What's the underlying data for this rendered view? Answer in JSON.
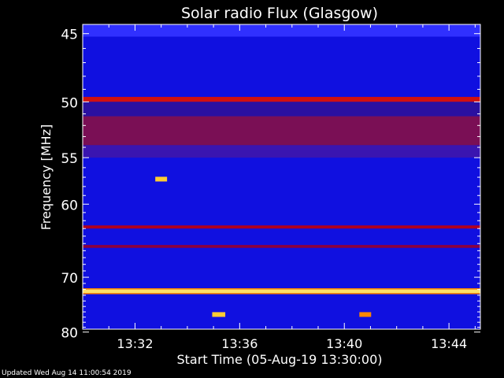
{
  "chart_data": {
    "type": "heatmap",
    "title": "Solar radio Flux (Glasgow)",
    "xlabel": "Start Time (05-Aug-19 13:30:00)",
    "ylabel": "Frequency [MHz]",
    "x_tick_labels": [
      "13:32",
      "13:36",
      "13:40",
      "13:44"
    ],
    "x_ticks_minutes": [
      2,
      6,
      10,
      14
    ],
    "xlim_minutes": [
      0,
      15.2
    ],
    "y_tick_labels": [
      "45",
      "50",
      "55",
      "60",
      "70",
      "80"
    ],
    "y_ticks_mhz": [
      45,
      50,
      55,
      60,
      70,
      80
    ],
    "ylim_mhz": [
      44.4,
      79.4
    ],
    "y_scale": "reciprocal (frequency increases downward, non-linear)",
    "colormap": [
      "#00008b",
      "#1a1aff",
      "#8b0040",
      "#cc0000",
      "#ff6600",
      "#ffff66",
      "#ffffff"
    ],
    "background_color": "#1010e0",
    "bands": [
      {
        "f_from": 44.4,
        "f_to": 45.2,
        "color": "#3030ff"
      },
      {
        "f_from": 49.6,
        "f_to": 50.0,
        "color": "#d01010"
      },
      {
        "f_from": 50.0,
        "f_to": 51.2,
        "color": "#2a10a0"
      },
      {
        "f_from": 51.2,
        "f_to": 53.8,
        "color": "#7a0f55"
      },
      {
        "f_from": 53.8,
        "f_to": 55.0,
        "color": "#3a15b0"
      },
      {
        "f_from": 62.6,
        "f_to": 63.0,
        "color": "#b00020"
      },
      {
        "f_from": 65.2,
        "f_to": 65.6,
        "color": "#8a0040"
      },
      {
        "f_from": 72.0,
        "f_to": 72.6,
        "color": "#ffe066"
      },
      {
        "f_from": 71.8,
        "f_to": 72.0,
        "color": "#ff8800"
      },
      {
        "f_from": 72.6,
        "f_to": 72.8,
        "color": "#ff8800"
      }
    ],
    "bursts": [
      {
        "t_minutes": 3.0,
        "f_mhz": 57.2,
        "width_minutes": 0.45,
        "color": "#ffcc33"
      },
      {
        "t_minutes": 5.2,
        "f_mhz": 76.5,
        "width_minutes": 0.5,
        "color": "#ffcc33"
      },
      {
        "t_minutes": 10.8,
        "f_mhz": 76.5,
        "width_minutes": 0.45,
        "color": "#ff8800"
      }
    ],
    "grid": false
  },
  "footer": {
    "updated_text": "Updated Wed Aug 14 11:00:54 2019"
  }
}
